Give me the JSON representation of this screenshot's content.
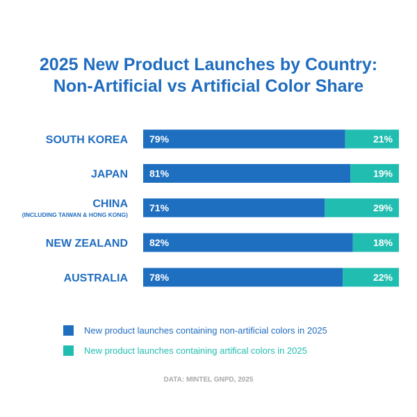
{
  "chart_data": {
    "type": "bar",
    "orientation": "horizontal",
    "stacked": true,
    "title_lines": [
      "2025 New Product Launches by Country:",
      "Non-Artificial vs Artificial Color Share"
    ],
    "categories": [
      "SOUTH KOREA",
      "JAPAN",
      "CHINA",
      "NEW ZEALAND",
      "AUSTRALIA"
    ],
    "category_sublabels": [
      "",
      "",
      "(INCLUDING TAIWAN & HONG KONG)",
      "",
      ""
    ],
    "series": [
      {
        "name": "New product launches containing non-artificial colors in 2025",
        "values": [
          79,
          81,
          71,
          82,
          78
        ],
        "labels": [
          "79%",
          "81%",
          "71%",
          "82%",
          "78%"
        ],
        "color": "#1f6fc0"
      },
      {
        "name": "New product launches containing artifical colors in 2025",
        "values": [
          21,
          19,
          29,
          18,
          22
        ],
        "labels": [
          "21%",
          "19%",
          "29%",
          "18%",
          "22%"
        ],
        "color": "#22bdb1"
      }
    ],
    "xlim": [
      0,
      100
    ],
    "grid": false,
    "legend_placement": "bottom",
    "source": "DATA: MINTEL GNPD, 2025"
  }
}
